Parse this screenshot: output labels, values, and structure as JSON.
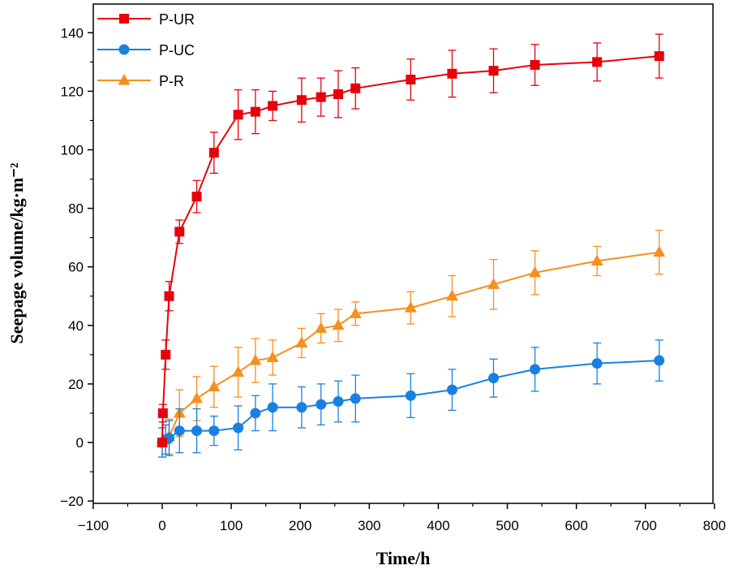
{
  "chart_data": {
    "type": "line",
    "title": "",
    "xlabel": "Time/h",
    "ylabel": "Seepage volume/kg·m⁻²",
    "xlim": [
      -100,
      800
    ],
    "ylim": [
      -20,
      150
    ],
    "xticks": [
      -100,
      0,
      100,
      200,
      300,
      400,
      500,
      600,
      700,
      800
    ],
    "yticks": [
      -20,
      0,
      20,
      40,
      60,
      80,
      100,
      120,
      140
    ],
    "grid": false,
    "legend_position": "top-left",
    "series": [
      {
        "name": "P-UR",
        "color": "#e8000b",
        "marker": "square",
        "x": [
          0,
          1,
          5,
          10,
          25,
          50,
          75,
          110,
          135,
          160,
          202,
          230,
          255,
          280,
          360,
          420,
          480,
          540,
          630,
          720
        ],
        "y": [
          0,
          10,
          30,
          50,
          72,
          84,
          99,
          112,
          113,
          115,
          117,
          118,
          119,
          121,
          124,
          126,
          127,
          129,
          130,
          132
        ],
        "err": [
          0,
          3,
          5,
          5,
          4,
          5.5,
          7,
          8.5,
          7.5,
          5,
          7.5,
          6.5,
          8,
          7,
          7,
          8,
          7.5,
          7,
          6.5,
          7.5
        ]
      },
      {
        "name": "P-UC",
        "color": "#1a80e0",
        "marker": "circle",
        "x": [
          0,
          5,
          10,
          25,
          50,
          75,
          110,
          135,
          160,
          202,
          230,
          255,
          280,
          360,
          420,
          480,
          540,
          630,
          720
        ],
        "y": [
          0,
          1,
          1.5,
          4,
          4,
          4,
          5,
          10,
          12,
          12,
          13,
          14,
          15,
          16,
          18,
          22,
          25,
          27,
          28
        ],
        "err": [
          5,
          5,
          6,
          7.5,
          7.5,
          5,
          7.5,
          6,
          8,
          7,
          7,
          7,
          8,
          7.5,
          7,
          6.5,
          7.5,
          7,
          7
        ]
      },
      {
        "name": "P-R",
        "color": "#f5901e",
        "marker": "triangle",
        "x": [
          0,
          5,
          10,
          25,
          50,
          75,
          110,
          135,
          160,
          202,
          230,
          255,
          280,
          360,
          420,
          480,
          540,
          630,
          720
        ],
        "y": [
          0,
          1,
          2,
          10,
          15,
          19,
          24,
          28,
          29,
          34,
          39,
          40,
          44,
          46,
          50,
          54,
          58,
          62,
          65
        ],
        "err": [
          5,
          5,
          6,
          8,
          7.5,
          7,
          8.5,
          7.5,
          6,
          5,
          5,
          5.5,
          4,
          5.5,
          7,
          8.5,
          7.5,
          5,
          7.5
        ]
      }
    ]
  }
}
